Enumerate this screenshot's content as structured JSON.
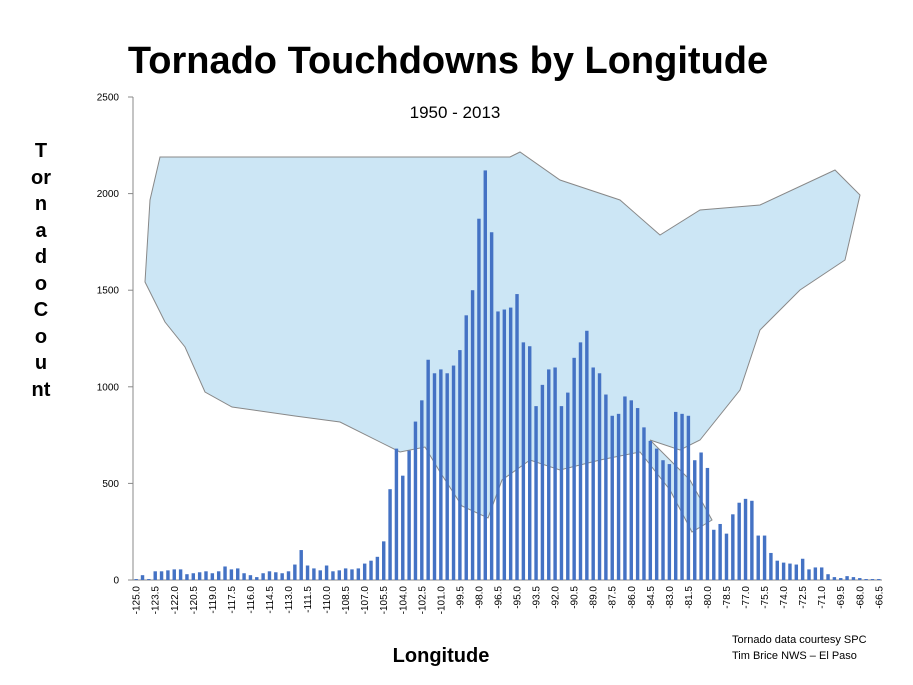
{
  "chart_data": {
    "type": "bar",
    "title": "Tornado Touchdowns by Longitude",
    "subtitle": "1950 - 2013",
    "y_label": "Tornado Count",
    "x_label": "Longitude",
    "annotations": [
      "Tornado data courtesy SPC",
      "Tim Brice NWS – El Paso"
    ],
    "color": "#4472c4",
    "ylim": [
      0,
      2500
    ],
    "yticks": [
      0,
      500,
      1000,
      1500,
      2000,
      2500
    ],
    "grid": false,
    "categories": [
      "-125.0",
      null,
      null,
      "-123.5",
      null,
      null,
      "-122.0",
      null,
      null,
      "-120.5",
      null,
      null,
      "-119.0",
      null,
      null,
      "-117.5",
      null,
      null,
      "-116.0",
      null,
      null,
      "-114.5",
      null,
      null,
      "-113.0",
      null,
      null,
      "-111.5",
      null,
      null,
      "-110.0",
      null,
      null,
      "-108.5",
      null,
      null,
      "-107.0",
      null,
      null,
      "-105.5",
      null,
      null,
      "-104.0",
      null,
      null,
      "-102.5",
      null,
      null,
      "-101.0",
      null,
      null,
      "-99.5",
      null,
      null,
      "-98.0",
      null,
      null,
      "-96.5",
      null,
      null,
      "-95.0",
      null,
      null,
      "-93.5",
      null,
      null,
      "-92.0",
      null,
      null,
      "-90.5",
      null,
      null,
      "-89.0",
      null,
      null,
      "-87.5",
      null,
      null,
      "-86.0",
      null,
      null,
      "-84.5",
      null,
      null,
      "-83.0",
      null,
      null,
      "-81.5",
      null,
      null,
      "-80.0",
      null,
      null,
      "-78.5",
      null,
      null,
      "-77.0",
      null,
      null,
      "-75.5",
      null,
      null,
      "-74.0",
      null,
      null,
      "-72.5",
      null,
      null,
      "-71.0",
      null,
      null,
      "-69.5",
      null,
      null,
      "-68.0",
      null,
      null,
      "-66.5"
    ],
    "values": [
      5,
      25,
      5,
      45,
      45,
      50,
      55,
      55,
      30,
      35,
      40,
      45,
      35,
      45,
      70,
      55,
      60,
      35,
      25,
      15,
      35,
      45,
      40,
      35,
      45,
      80,
      155,
      75,
      60,
      50,
      75,
      45,
      50,
      60,
      55,
      60,
      85,
      100,
      120,
      200,
      470,
      680,
      540,
      670,
      820,
      930,
      1140,
      1070,
      1090,
      1070,
      1110,
      1190,
      1370,
      1500,
      1870,
      2120,
      1800,
      1390,
      1400,
      1410,
      1480,
      1230,
      1210,
      900,
      1010,
      1090,
      1100,
      900,
      970,
      1150,
      1230,
      1290,
      1100,
      1070,
      960,
      850,
      860,
      950,
      930,
      890,
      790,
      720,
      680,
      620,
      600,
      870,
      860,
      850,
      620,
      660,
      580,
      260,
      290,
      240,
      340,
      400,
      420,
      410,
      230,
      230,
      140,
      100,
      90,
      85,
      80,
      110,
      55,
      65,
      65,
      30,
      15,
      10,
      20,
      15,
      10,
      5,
      5,
      5
    ]
  }
}
